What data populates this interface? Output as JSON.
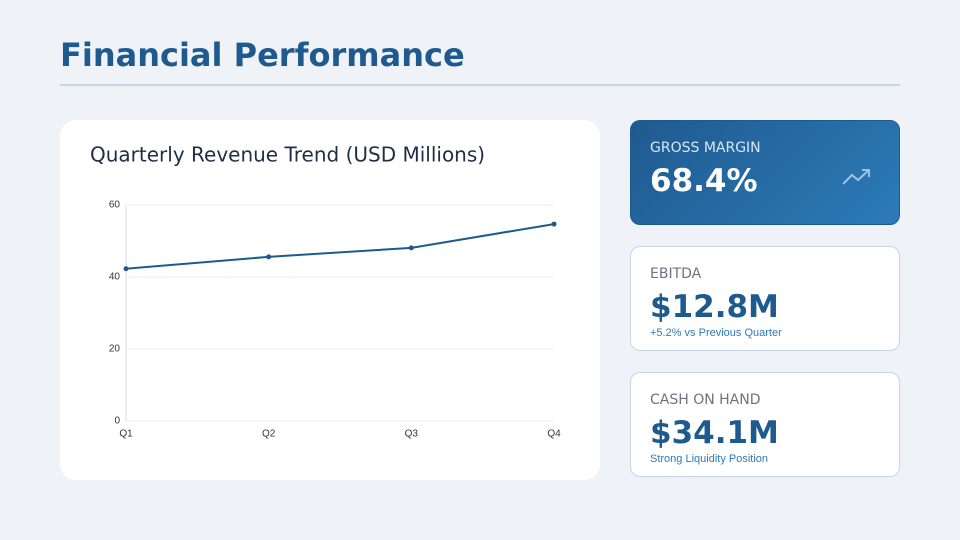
{
  "header": {
    "title": "Financial Performance"
  },
  "chart_data": {
    "type": "line",
    "title": "Quarterly Revenue Trend (USD Millions)",
    "categories": [
      "Q1",
      "Q2",
      "Q3",
      "Q4"
    ],
    "series": [
      {
        "name": "Revenue",
        "color": "#1f5a8f",
        "values": [
          42.3,
          45.6,
          48.1,
          54.7
        ]
      }
    ],
    "ylim": [
      0,
      60
    ],
    "yticks": [
      0,
      20,
      40,
      60
    ],
    "grid": true
  },
  "kpis": [
    {
      "label": "GROSS MARGIN",
      "value": "68.4%"
    },
    {
      "label": "EBITDA",
      "value": "$12.8M",
      "note": "+5.2% vs Previous Quarter"
    },
    {
      "label": "CASH ON HAND",
      "value": "$34.1M",
      "note": "Strong Liquidity Position"
    }
  ]
}
